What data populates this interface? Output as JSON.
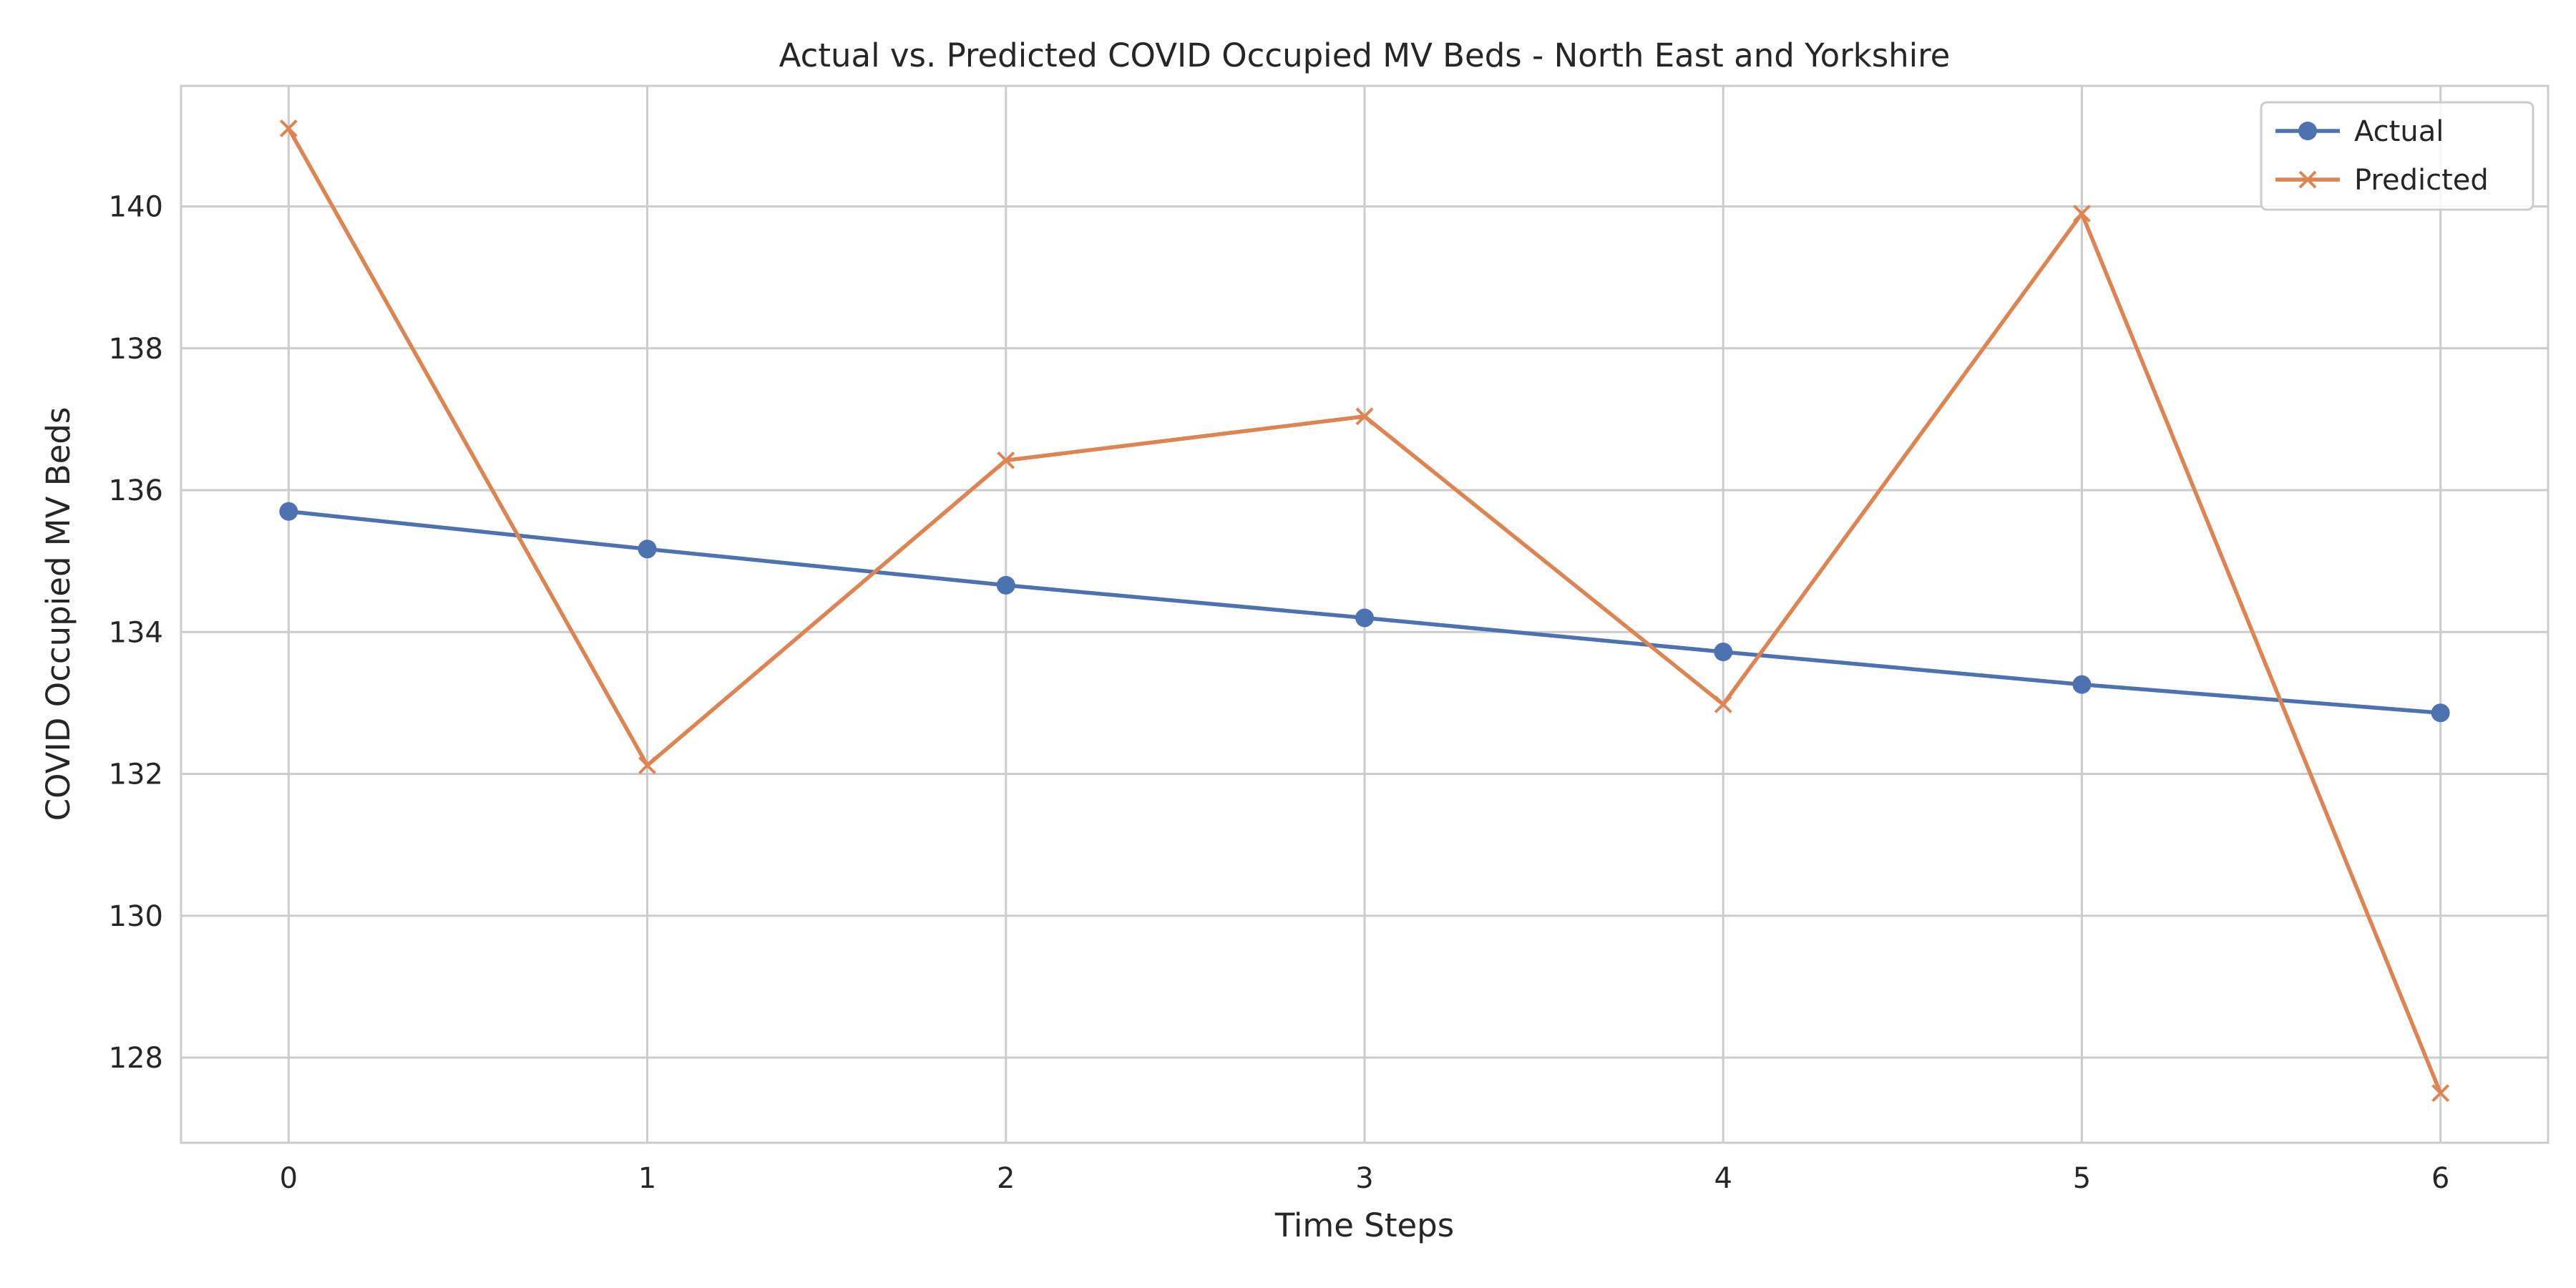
{
  "chart_data": {
    "type": "line",
    "title": "Actual vs. Predicted COVID Occupied MV Beds - North East and Yorkshire",
    "xlabel": "Time Steps",
    "ylabel": "COVID Occupied MV Beds",
    "x": [
      0,
      1,
      2,
      3,
      4,
      5,
      6
    ],
    "xlim": [
      -0.3,
      6.3
    ],
    "ylim": [
      126.8,
      141.7
    ],
    "xticks": [
      "0",
      "1",
      "2",
      "3",
      "4",
      "5",
      "6"
    ],
    "yticks": [
      "128",
      "130",
      "132",
      "134",
      "136",
      "138",
      "140"
    ],
    "grid": true,
    "legend_position": "top-right",
    "series": [
      {
        "name": "Actual",
        "color": "#4c72b0",
        "marker": "circle",
        "values": [
          135.7,
          135.17,
          134.66,
          134.2,
          133.72,
          133.26,
          132.86
        ]
      },
      {
        "name": "Predicted",
        "color": "#dd8452",
        "marker": "x",
        "values": [
          141.1,
          132.12,
          136.42,
          137.04,
          132.98,
          139.9,
          127.5
        ]
      }
    ]
  }
}
